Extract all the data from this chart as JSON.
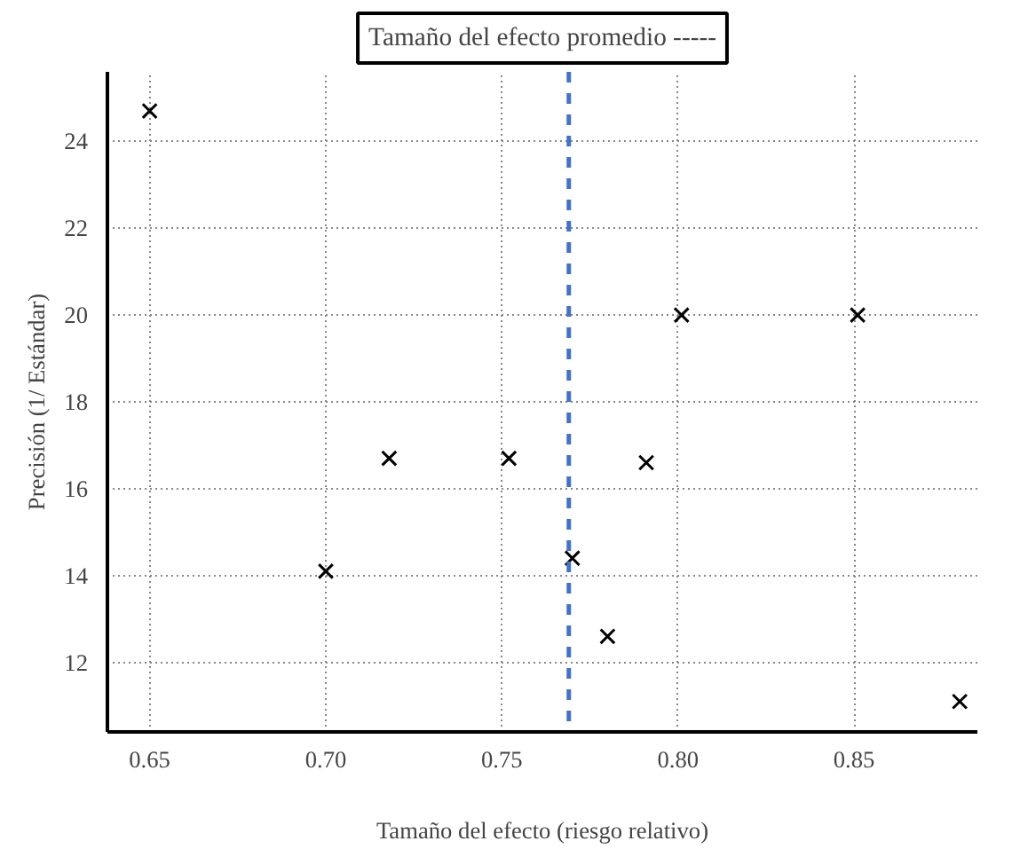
{
  "chart_data": {
    "type": "scatter",
    "title": "Tamaño del efecto promedio -----",
    "xlabel": "Tamaño del efecto (riesgo relativo)",
    "ylabel": "Precisión (1/ Estándar)",
    "x": [
      0.65,
      0.7,
      0.718,
      0.752,
      0.77,
      0.78,
      0.791,
      0.801,
      0.851,
      0.88
    ],
    "series": [
      {
        "color": "#000000",
        "values": [
          24.7,
          14.1,
          16.7,
          16.7,
          14.4,
          12.6,
          16.6,
          20.0,
          20.0,
          11.1
        ]
      }
    ],
    "xlim": [
      0.638,
      0.885
    ],
    "ylim": [
      10.4,
      25.6
    ],
    "xticks": [
      {
        "value": 0.65,
        "label": "0.65"
      },
      {
        "value": 0.7,
        "label": "0.70"
      },
      {
        "value": 0.75,
        "label": "0.75"
      },
      {
        "value": 0.8,
        "label": "0.80"
      },
      {
        "value": 0.85,
        "label": "0.85"
      }
    ],
    "yticks": [
      12,
      14,
      16,
      18,
      20,
      22,
      24
    ],
    "ref_lines": [
      {
        "axis": "x",
        "value": 0.769,
        "color": "#4472c4",
        "line_style": "dashed"
      }
    ],
    "grid": true,
    "marker": "cross"
  }
}
